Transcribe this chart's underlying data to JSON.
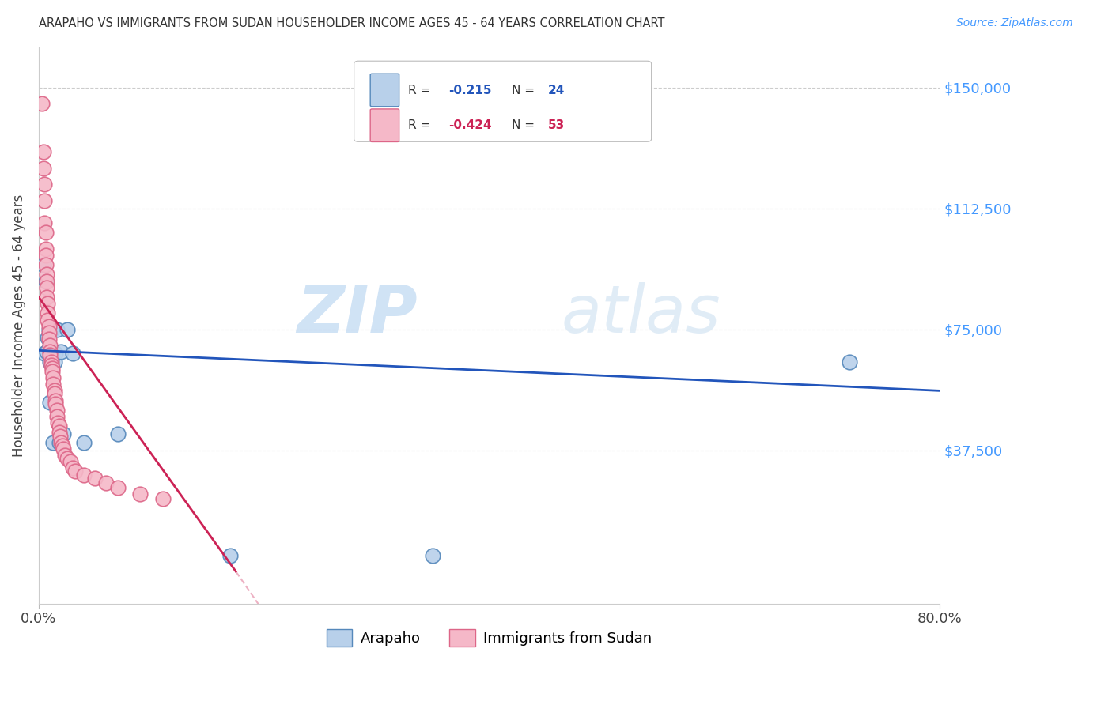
{
  "title": "ARAPAHO VS IMMIGRANTS FROM SUDAN HOUSEHOLDER INCOME AGES 45 - 64 YEARS CORRELATION CHART",
  "source": "Source: ZipAtlas.com",
  "ylabel": "Householder Income Ages 45 - 64 years",
  "xlim": [
    0.0,
    0.8
  ],
  "ylim": [
    -10000,
    162500
  ],
  "yticks": [
    0,
    37500,
    75000,
    112500,
    150000
  ],
  "ytick_labels": [
    "",
    "$37,500",
    "$75,000",
    "$112,500",
    "$150,000"
  ],
  "xtick_labels": [
    "0.0%",
    "80.0%"
  ],
  "legend_labels": [
    "Arapaho",
    "Immigrants from Sudan"
  ],
  "legend_r": [
    "R = ",
    "-0.215",
    "   N = ",
    "24"
  ],
  "legend_r2": [
    "R = ",
    "-0.424",
    "   N = ",
    "53"
  ],
  "watermark_zip": "ZIP",
  "watermark_atlas": "atlas",
  "background_color": "#ffffff",
  "grid_color": "#cccccc",
  "arapaho_color": "#b8d0ea",
  "sudan_color": "#f5b8c8",
  "arapaho_edge": "#5588bb",
  "sudan_edge": "#dd6688",
  "arapaho_line_color": "#2255bb",
  "sudan_line_color": "#cc2255",
  "arapaho_line": [
    [
      0.0,
      68500
    ],
    [
      0.8,
      56000
    ]
  ],
  "sudan_line": [
    [
      0.0,
      85000
    ],
    [
      0.175,
      0
    ]
  ],
  "sudan_line_dash": [
    [
      0.175,
      0
    ],
    [
      0.28,
      -53000
    ]
  ],
  "arapaho_scatter": [
    [
      0.004,
      95000
    ],
    [
      0.005,
      67500
    ],
    [
      0.006,
      90000
    ],
    [
      0.007,
      68000
    ],
    [
      0.008,
      72500
    ],
    [
      0.009,
      75000
    ],
    [
      0.01,
      65000
    ],
    [
      0.01,
      52500
    ],
    [
      0.012,
      67500
    ],
    [
      0.012,
      75000
    ],
    [
      0.013,
      40000
    ],
    [
      0.014,
      65000
    ],
    [
      0.015,
      67500
    ],
    [
      0.016,
      75000
    ],
    [
      0.018,
      40000
    ],
    [
      0.02,
      68000
    ],
    [
      0.022,
      42500
    ],
    [
      0.025,
      75000
    ],
    [
      0.03,
      67500
    ],
    [
      0.04,
      40000
    ],
    [
      0.07,
      42500
    ],
    [
      0.17,
      5000
    ],
    [
      0.35,
      5000
    ],
    [
      0.72,
      65000
    ]
  ],
  "sudan_scatter": [
    [
      0.003,
      145000
    ],
    [
      0.004,
      130000
    ],
    [
      0.004,
      125000
    ],
    [
      0.005,
      120000
    ],
    [
      0.005,
      115000
    ],
    [
      0.005,
      108000
    ],
    [
      0.006,
      105000
    ],
    [
      0.006,
      100000
    ],
    [
      0.006,
      98000
    ],
    [
      0.006,
      95000
    ],
    [
      0.007,
      92000
    ],
    [
      0.007,
      90000
    ],
    [
      0.007,
      88000
    ],
    [
      0.007,
      85000
    ],
    [
      0.008,
      83000
    ],
    [
      0.008,
      80000
    ],
    [
      0.008,
      78000
    ],
    [
      0.009,
      76000
    ],
    [
      0.009,
      74000
    ],
    [
      0.009,
      72000
    ],
    [
      0.01,
      70000
    ],
    [
      0.01,
      68000
    ],
    [
      0.01,
      67000
    ],
    [
      0.011,
      65000
    ],
    [
      0.011,
      64000
    ],
    [
      0.012,
      63000
    ],
    [
      0.012,
      62000
    ],
    [
      0.013,
      60000
    ],
    [
      0.013,
      58000
    ],
    [
      0.014,
      56000
    ],
    [
      0.014,
      55000
    ],
    [
      0.015,
      53000
    ],
    [
      0.015,
      52000
    ],
    [
      0.016,
      50000
    ],
    [
      0.016,
      48000
    ],
    [
      0.017,
      46000
    ],
    [
      0.018,
      45000
    ],
    [
      0.018,
      43000
    ],
    [
      0.019,
      42000
    ],
    [
      0.02,
      40000
    ],
    [
      0.021,
      39000
    ],
    [
      0.022,
      38000
    ],
    [
      0.023,
      36000
    ],
    [
      0.025,
      35000
    ],
    [
      0.028,
      34000
    ],
    [
      0.03,
      32000
    ],
    [
      0.032,
      31000
    ],
    [
      0.04,
      30000
    ],
    [
      0.05,
      29000
    ],
    [
      0.06,
      27500
    ],
    [
      0.07,
      26000
    ],
    [
      0.09,
      24000
    ],
    [
      0.11,
      22500
    ]
  ]
}
